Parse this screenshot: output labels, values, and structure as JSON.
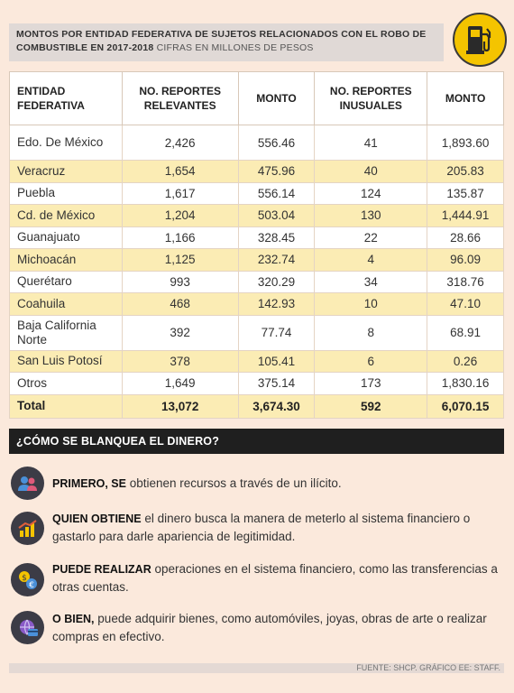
{
  "header": {
    "title_bold": "Montos por entidad federativa de sujetos relacionados con el robo de combustible en 2017-2018",
    "title_light": "cifras en millones de pesos"
  },
  "table": {
    "columns": [
      "Entidad Federativa",
      "No. reportes relevantes",
      "Monto",
      "No. reportes inusuales",
      "Monto"
    ],
    "rows": [
      [
        "Edo. De México",
        "2,426",
        "556.46",
        "41",
        "1,893.60"
      ],
      [
        "Veracruz",
        "1,654",
        "475.96",
        "40",
        "205.83"
      ],
      [
        "Puebla",
        "1,617",
        "556.14",
        "124",
        "135.87"
      ],
      [
        "Cd. de México",
        "1,204",
        "503.04",
        "130",
        "1,444.91"
      ],
      [
        "Guanajuato",
        "1,166",
        "328.45",
        "22",
        "28.66"
      ],
      [
        "Michoacán",
        "1,125",
        "232.74",
        "4",
        "96.09"
      ],
      [
        "Querétaro",
        "993",
        "320.29",
        "34",
        "318.76"
      ],
      [
        "Coahuila",
        "468",
        "142.93",
        "10",
        "47.10"
      ],
      [
        "Baja California Norte",
        "392",
        "77.74",
        "8",
        "68.91"
      ],
      [
        "San Luis Potosí",
        "378",
        "105.41",
        "6",
        "0.26"
      ],
      [
        "Otros",
        "1,649",
        "375.14",
        "173",
        "1,830.16"
      ]
    ],
    "total": [
      "Total",
      "13,072",
      "3,674.30",
      "592",
      "6,070.15"
    ]
  },
  "section": {
    "title": "¿Cómo se blanquea el dinero?",
    "steps": [
      {
        "bold": "Primero, se",
        "text": " obtienen recursos a través de un ilícito.",
        "icon": "people-icon"
      },
      {
        "bold": "Quien obtiene",
        "text": " el dinero busca la manera de meterlo al sistema financiero o gastarlo para darle apariencia de legitimidad.",
        "icon": "chart-icon"
      },
      {
        "bold": "Puede realizar",
        "text": " operaciones en el sistema financiero, como las transferencias a otras cuentas.",
        "icon": "currency-exchange-icon"
      },
      {
        "bold": "O bien,",
        "text": "  puede adquirir bienes, como automóviles, joyas, obras de arte o realizar compras en efectivo.",
        "icon": "globe-card-icon"
      }
    ]
  },
  "footer": "Fuente: SHCP. Gráfico EE: Staff.",
  "colors": {
    "background": "#fbe9dc",
    "row_highlight": "#fbecb4",
    "accent_yellow": "#f4c400",
    "dark_bar": "#1f1f1f"
  }
}
